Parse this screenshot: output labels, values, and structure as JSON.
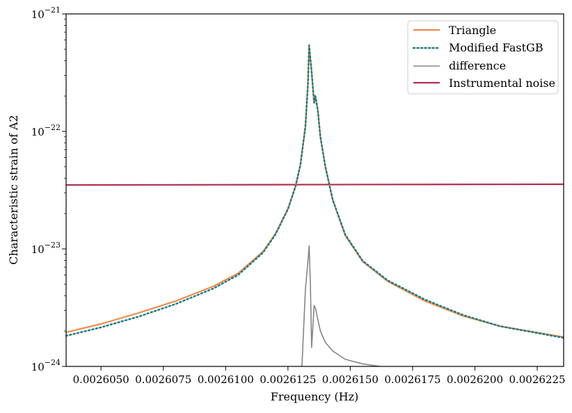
{
  "chart_data": {
    "type": "line",
    "title": "",
    "xlabel": "Frequency (Hz)",
    "ylabel": "Characteristic strain of A2",
    "xlim": [
      0.0026036,
      0.00262356
    ],
    "ylim": [
      1e-24,
      1e-21
    ],
    "yscale": "log",
    "grid": false,
    "legend_position": "top-right",
    "x_ticks": [
      0.002605,
      0.0026075,
      0.00261,
      0.0026125,
      0.002615,
      0.0026175,
      0.00262,
      0.0026225
    ],
    "x_tick_labels": [
      "0.0026050",
      "0.0026075",
      "0.0026100",
      "0.0026125",
      "0.0026150",
      "0.0026175",
      "0.0026200",
      "0.0026225"
    ],
    "y_ticks": [
      {
        "value": 1e-21,
        "base": "10",
        "exp": "−21"
      },
      {
        "value": 1e-22,
        "base": "10",
        "exp": "−22"
      },
      {
        "value": 1e-23,
        "base": "10",
        "exp": "−23"
      },
      {
        "value": 1e-24,
        "base": "10",
        "exp": "−24"
      }
    ],
    "series": [
      {
        "name": "Triangle",
        "color": "#f08a4b",
        "style": "solid",
        "x": [
          0.0026036,
          0.002605,
          0.0026065,
          0.002608,
          0.0026095,
          0.0026105,
          0.0026115,
          0.002612,
          0.0026125,
          0.0026128,
          0.002613,
          0.0026132,
          0.0026133,
          0.00261335,
          0.00261345,
          0.00261355,
          0.0026136,
          0.0026137,
          0.0026138,
          0.002614,
          0.0026143,
          0.0026148,
          0.0026155,
          0.0026165,
          0.002618,
          0.0026195,
          0.002621,
          0.00262356
        ],
        "y": [
          1.95e-24,
          2.3e-24,
          2.85e-24,
          3.6e-24,
          4.8e-24,
          6.2e-24,
          9.5e-24,
          1.35e-23,
          2.2e-23,
          3.4e-23,
          5.2e-23,
          1.1e-22,
          2.5e-22,
          5.3e-22,
          3.2e-22,
          1.75e-22,
          2e-22,
          1.5e-22,
          9e-23,
          5e-23,
          2.6e-23,
          1.3e-23,
          7.8e-24,
          5.3e-24,
          3.6e-24,
          2.7e-24,
          2.2e-24,
          1.78e-24
        ]
      },
      {
        "name": "Modified FastGB",
        "color": "#1f7a80",
        "style": "dotted",
        "x": [
          0.0026036,
          0.002605,
          0.0026065,
          0.002608,
          0.0026095,
          0.0026105,
          0.0026115,
          0.002612,
          0.0026125,
          0.0026128,
          0.002613,
          0.0026132,
          0.0026133,
          0.00261335,
          0.00261345,
          0.00261355,
          0.0026136,
          0.0026137,
          0.0026138,
          0.002614,
          0.0026143,
          0.0026148,
          0.0026155,
          0.0026165,
          0.002618,
          0.0026195,
          0.002621,
          0.00262356
        ],
        "y": [
          1.82e-24,
          2.15e-24,
          2.65e-24,
          3.4e-24,
          4.6e-24,
          6e-24,
          9.3e-24,
          1.33e-23,
          2.18e-23,
          3.38e-23,
          5.2e-23,
          1.1e-22,
          2.5e-22,
          5.4e-22,
          3.2e-22,
          1.75e-22,
          2e-22,
          1.5e-22,
          9e-23,
          5e-23,
          2.6e-23,
          1.32e-23,
          7.9e-24,
          5.4e-24,
          3.7e-24,
          2.75e-24,
          2.2e-24,
          1.75e-24
        ]
      },
      {
        "name": "difference",
        "color": "#858585",
        "style": "solid",
        "x": [
          0.00261306,
          0.0026132,
          0.0026133,
          0.00261335,
          0.0026134,
          0.00261345,
          0.0026135,
          0.00261355,
          0.0026136,
          0.0026137,
          0.0026138,
          0.002614,
          0.0026143,
          0.0026148,
          0.0026155,
          0.0026162
        ],
        "y": [
          1e-24,
          4.5e-24,
          7.8e-24,
          1.06e-23,
          5e-24,
          1.45e-24,
          2.2e-24,
          3.3e-24,
          3.15e-24,
          2.5e-24,
          2e-24,
          1.6e-24,
          1.35e-24,
          1.15e-24,
          1.05e-24,
          1e-24
        ]
      },
      {
        "name": "Instrumental noise",
        "color": "#b03050",
        "style": "solid",
        "x": [
          0.0026036,
          0.00262356
        ],
        "y": [
          3.5e-23,
          3.55e-23
        ]
      }
    ]
  }
}
